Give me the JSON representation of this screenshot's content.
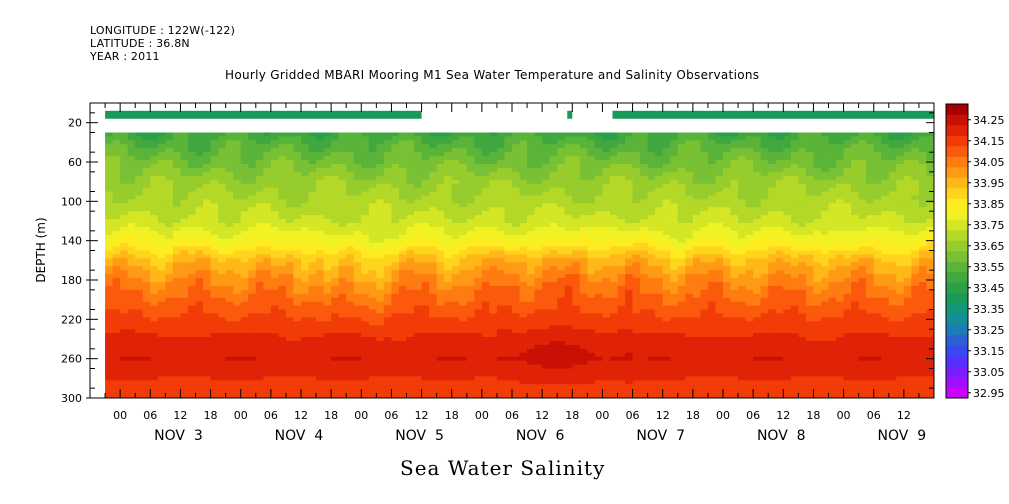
{
  "header": {
    "longitude": "LONGITUDE : 122W(-122)",
    "latitude": "LATITUDE : 36.8N",
    "year": "YEAR : 2011",
    "title": "Hourly Gridded MBARI Mooring M1 Sea Water Temperature and Salinity Observations"
  },
  "caption": "Sea Water Salinity",
  "colors": {
    "data_gap": "#ffffff",
    "surface_band": "#1a8a6a"
  },
  "chart_data": {
    "type": "heatmap",
    "title": "Hourly Gridded MBARI Mooring M1 Sea Water Temperature and Salinity Observations",
    "xlabel": "",
    "ylabel": "DEPTH (m)",
    "ylim": [
      300,
      0
    ],
    "y_ticks": [
      20,
      60,
      100,
      140,
      180,
      220,
      260,
      300
    ],
    "x_range_hours": [
      -6,
      162
    ],
    "x_tick_hour_labels": [
      "00",
      "06",
      "12",
      "18",
      "00",
      "06",
      "12",
      "18",
      "00",
      "06",
      "12",
      "18",
      "00",
      "06",
      "12",
      "18",
      "00",
      "06",
      "12",
      "18",
      "00",
      "06",
      "12",
      "18",
      "00",
      "06",
      "12"
    ],
    "x_day_labels": [
      "NOV  3",
      "NOV  4",
      "NOV  5",
      "NOV  6",
      "NOV  7",
      "NOV  8",
      "NOV  9"
    ],
    "colorbar": {
      "labels": [
        "34.25",
        "34.15",
        "34.05",
        "33.95",
        "33.85",
        "33.75",
        "33.65",
        "33.55",
        "33.45",
        "33.35",
        "33.25",
        "33.15",
        "33.05",
        "32.95"
      ],
      "levels": [
        32.95,
        33.0,
        33.05,
        33.1,
        33.15,
        33.2,
        33.25,
        33.3,
        33.35,
        33.4,
        33.45,
        33.5,
        33.55,
        33.6,
        33.65,
        33.7,
        33.75,
        33.8,
        33.85,
        33.9,
        33.95,
        34.0,
        34.05,
        34.1,
        34.15,
        34.2,
        34.25,
        34.3
      ],
      "colors": [
        "#cc00ff",
        "#a010ff",
        "#7a1eff",
        "#5530ff",
        "#3a48f0",
        "#2a62d6",
        "#1e7ab8",
        "#168c98",
        "#14967a",
        "#1a9a5a",
        "#2aa048",
        "#40a83e",
        "#5ab43a",
        "#78c034",
        "#96cc2c",
        "#b4d828",
        "#d4e624",
        "#f0f224",
        "#ffec20",
        "#ffd41c",
        "#ffb818",
        "#ff9a14",
        "#ff7c10",
        "#fb5a0c",
        "#f23c08",
        "#e02206",
        "#c81004",
        "#a80000"
      ]
    },
    "depth_profile": {
      "depth_m": [
        30,
        40,
        60,
        80,
        100,
        120,
        140,
        160,
        180,
        200,
        220,
        240,
        260,
        280,
        300
      ],
      "salinity": [
        33.52,
        33.56,
        33.62,
        33.68,
        33.72,
        33.76,
        33.84,
        33.97,
        34.05,
        34.11,
        34.16,
        34.21,
        34.24,
        34.2,
        34.18
      ]
    },
    "surface_band": {
      "depth_m": [
        12,
        14
      ],
      "salinity": 33.42,
      "present_hours": [
        [
          -3,
          60
        ],
        [
          89,
          90
        ],
        [
          98,
          162
        ]
      ]
    },
    "data_coverage_hours": [
      -3,
      162
    ],
    "data_top_depth_m": 30
  }
}
